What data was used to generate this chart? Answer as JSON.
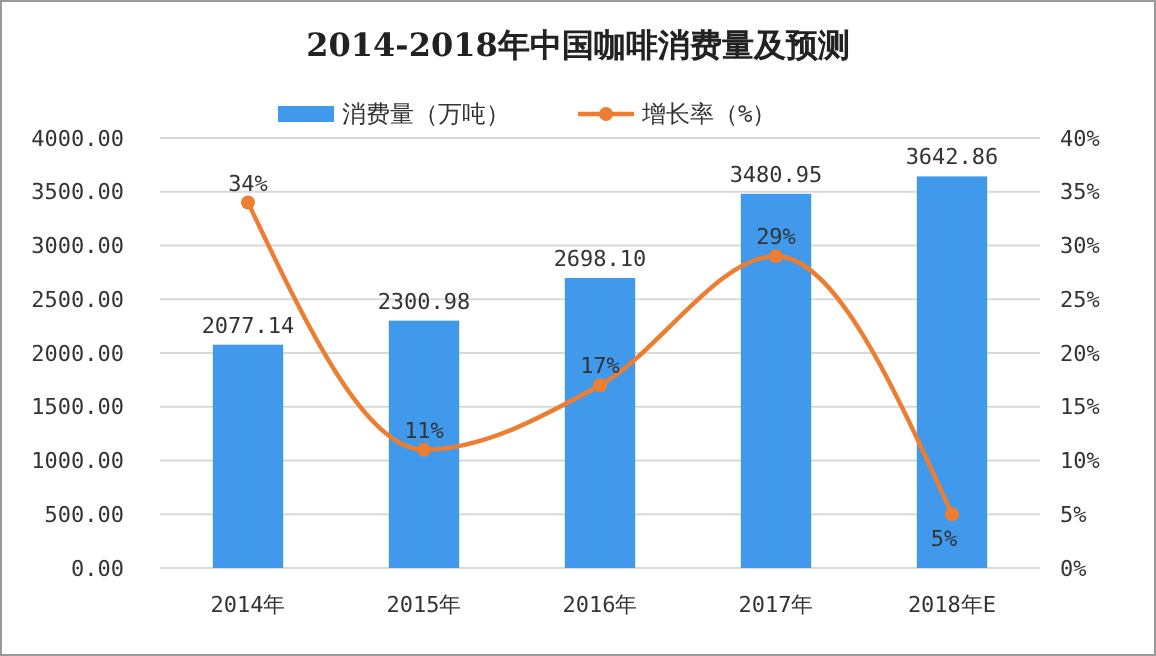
{
  "chart_data": {
    "type": "bar",
    "title": "2014-2018年中国咖啡消费量及预测",
    "categories": [
      "2014年",
      "2015年",
      "2016年",
      "2017年",
      "2018年E"
    ],
    "series": [
      {
        "name": "消费量（万吨）",
        "color": "#4199ec",
        "values": [
          2077.14,
          2300.98,
          2698.1,
          3480.95,
          3642.86
        ],
        "value_labels": [
          "2077.14",
          "2300.98",
          "2698.10",
          "3480.95",
          "3642.86"
        ]
      },
      {
        "name": "增长率（%）",
        "type": "line",
        "axis": "y2",
        "color": "#ed7d31",
        "values": [
          34,
          11,
          17,
          29,
          5
        ],
        "value_labels": [
          "34%",
          "11%",
          "17%",
          "29%",
          "5%"
        ]
      }
    ],
    "ylim": [
      0,
      4000
    ],
    "yticks": [
      {
        "value": 0,
        "label": "0.00"
      },
      {
        "value": 500,
        "label": "500.00"
      },
      {
        "value": 1000,
        "label": "1000.00"
      },
      {
        "value": 1500,
        "label": "1500.00"
      },
      {
        "value": 2000,
        "label": "2000.00"
      },
      {
        "value": 2500,
        "label": "2500.00"
      },
      {
        "value": 3000,
        "label": "3000.00"
      },
      {
        "value": 3500,
        "label": "3500.00"
      },
      {
        "value": 4000,
        "label": "4000.00"
      }
    ],
    "y2lim": [
      0,
      40
    ],
    "y2ticks": [
      {
        "value": 0,
        "label": "0%"
      },
      {
        "value": 5,
        "label": "5%"
      },
      {
        "value": 10,
        "label": "10%"
      },
      {
        "value": 15,
        "label": "15%"
      },
      {
        "value": 20,
        "label": "20%"
      },
      {
        "value": 25,
        "label": "25%"
      },
      {
        "value": 30,
        "label": "30%"
      },
      {
        "value": 35,
        "label": "35%"
      },
      {
        "value": 40,
        "label": "40%"
      }
    ],
    "grid": "y",
    "legend": "top",
    "marker": "circle",
    "line_style": "solid"
  }
}
